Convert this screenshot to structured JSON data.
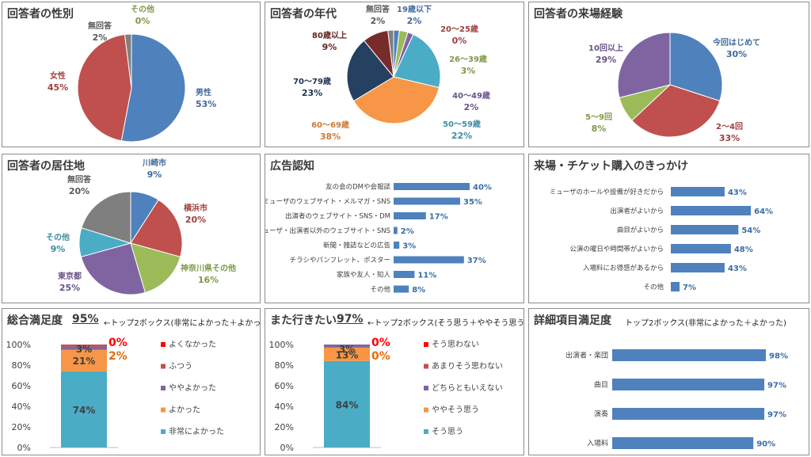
{
  "colors": {
    "blue": "#4f81bd",
    "red": "#c0504d",
    "green": "#9bbb59",
    "purple": "#8064a2",
    "aqua": "#4bacc6",
    "orange": "#f79646",
    "darkred": "#772c2a",
    "navy": "#1f3864",
    "gray": "#7f7f7f",
    "bright_red": "#ff0000",
    "teal": "#4bacc6"
  },
  "panels": {
    "gender": {
      "title": "回答者の性別"
    },
    "age": {
      "title": "回答者の年代"
    },
    "visits": {
      "title": "回答者の来場経験"
    },
    "residence": {
      "title": "回答者の居住地"
    },
    "awareness": {
      "title": "広告認知"
    },
    "trigger": {
      "title": "来場・チケット購入のきっかけ"
    },
    "overall": {
      "title": "総合満足度",
      "top2": "95%",
      "note": "←トップ2ボックス(非常によかった＋よかった)"
    },
    "revisit": {
      "title": "また行きたい",
      "top2": "97%",
      "note": "←トップ2ボックス(そう思う＋ややそう思う)"
    },
    "detail": {
      "title": "詳細項目満足度",
      "note": "トップ2ボックス(非常によかった＋よかった)"
    }
  },
  "chart_data": [
    {
      "id": "gender",
      "type": "pie",
      "slices": [
        {
          "label": "男性",
          "value": 53,
          "display": "53%",
          "color": "#4f81bd"
        },
        {
          "label": "女性",
          "value": 45,
          "display": "45%",
          "color": "#c0504d"
        },
        {
          "label": "無回答",
          "value": 2,
          "display": "2%",
          "color": "#7f7f7f"
        },
        {
          "label": "その他",
          "value": 0,
          "display": "0%",
          "color": "#9bbb59"
        }
      ]
    },
    {
      "id": "age",
      "type": "pie",
      "slices": [
        {
          "label": "19歳以下",
          "value": 2,
          "display": "2%",
          "color": "#4f81bd"
        },
        {
          "label": "20～25歳",
          "value": 0,
          "display": "0%",
          "color": "#c0504d"
        },
        {
          "label": "26～39歳",
          "value": 3,
          "display": "3%",
          "color": "#9bbb59"
        },
        {
          "label": "40～49歳",
          "value": 2,
          "display": "2%",
          "color": "#8064a2"
        },
        {
          "label": "50～59歳",
          "value": 22,
          "display": "22%",
          "color": "#4bacc6"
        },
        {
          "label": "60～69歳",
          "value": 38,
          "display": "38%",
          "color": "#f79646"
        },
        {
          "label": "70～79歳",
          "value": 23,
          "display": "23%",
          "color": "#254061"
        },
        {
          "label": "80歳以上",
          "value": 9,
          "display": "9%",
          "color": "#772c2a"
        },
        {
          "label": "無回答",
          "value": 2,
          "display": "2%",
          "color": "#7f7f7f"
        }
      ]
    },
    {
      "id": "visits",
      "type": "pie",
      "slices": [
        {
          "label": "今回はじめて",
          "value": 30,
          "display": "30%",
          "color": "#4f81bd"
        },
        {
          "label": "2～4回",
          "value": 33,
          "display": "33%",
          "color": "#c0504d"
        },
        {
          "label": "5～9回",
          "value": 8,
          "display": "8%",
          "color": "#9bbb59"
        },
        {
          "label": "10回以上",
          "value": 29,
          "display": "29%",
          "color": "#8064a2"
        }
      ]
    },
    {
      "id": "residence",
      "type": "pie",
      "slices": [
        {
          "label": "川崎市",
          "value": 9,
          "display": "9%",
          "color": "#4f81bd"
        },
        {
          "label": "横浜市",
          "value": 20,
          "display": "20%",
          "color": "#c0504d"
        },
        {
          "label": "神奈川県その他",
          "value": 16,
          "display": "16%",
          "color": "#9bbb59"
        },
        {
          "label": "東京都",
          "value": 25,
          "display": "25%",
          "color": "#8064a2"
        },
        {
          "label": "その他",
          "value": 9,
          "display": "9%",
          "color": "#4bacc6"
        },
        {
          "label": "無回答",
          "value": 20,
          "display": "20%",
          "color": "#7f7f7f"
        }
      ]
    },
    {
      "id": "awareness",
      "type": "bar",
      "orientation": "horizontal",
      "categories": [
        "友の会のDMや会報誌",
        "ミューザのウェブサイト・メルマガ・SNS",
        "出演者のウェブサイト・SNS・DM",
        "ミューザ・出演者以外のウェブサイト・SNS",
        "新聞・雑誌などの広告",
        "チラシやパンフレット、ポスター",
        "家族や友人・知人",
        "その他"
      ],
      "values": [
        40,
        35,
        17,
        2,
        3,
        37,
        11,
        8
      ],
      "labels": [
        "40%",
        "35%",
        "17%",
        "2%",
        "3%",
        "37%",
        "11%",
        "8%"
      ]
    },
    {
      "id": "trigger",
      "type": "bar",
      "orientation": "horizontal",
      "categories": [
        "ミューザのホールや設備が好きだから",
        "出演者がよいから",
        "曲目がよいから",
        "公演の曜日や時間帯がよいから",
        "入場料にお得感があるから",
        "その他"
      ],
      "values": [
        43,
        64,
        54,
        48,
        43,
        7
      ],
      "labels": [
        "43%",
        "64%",
        "54%",
        "48%",
        "43%",
        "7%"
      ]
    },
    {
      "id": "overall",
      "type": "bar",
      "stacked": true,
      "yticks": [
        "100%",
        "80%",
        "60%",
        "40%",
        "20%",
        "0%"
      ],
      "series": [
        {
          "name": "非常によかった",
          "value": 74,
          "display": "74%",
          "color": "#4bacc6"
        },
        {
          "name": "よかった",
          "value": 21,
          "display": "21%",
          "color": "#f79646"
        },
        {
          "name": "ややよかった",
          "value": 3,
          "display": "3%",
          "color": "#8064a2"
        },
        {
          "name": "ふつう",
          "value": 2,
          "display": "2%",
          "color": "#c0504d"
        },
        {
          "name": "よくなかった",
          "value": 0,
          "display": "0%",
          "color": "#ff0000"
        }
      ]
    },
    {
      "id": "revisit",
      "type": "bar",
      "stacked": true,
      "yticks": [
        "100%",
        "80%",
        "60%",
        "40%",
        "20%",
        "0%"
      ],
      "series": [
        {
          "name": "そう思う",
          "value": 84,
          "display": "84%",
          "color": "#4bacc6"
        },
        {
          "name": "ややそう思う",
          "value": 13,
          "display": "13%",
          "color": "#f79646"
        },
        {
          "name": "どちらともいえない",
          "value": 3,
          "display": "3%",
          "color": "#8064a2"
        },
        {
          "name": "あまりそう思わない",
          "value": 0,
          "display": "0%",
          "color": "#c0504d"
        },
        {
          "name": "そう思わない",
          "value": 0,
          "display": "0%",
          "color": "#ff0000"
        }
      ]
    },
    {
      "id": "detail",
      "type": "bar",
      "orientation": "horizontal",
      "categories": [
        "出演者・楽団",
        "曲目",
        "演奏",
        "入場料"
      ],
      "values": [
        98,
        97,
        97,
        90
      ],
      "labels": [
        "98%",
        "97%",
        "97%",
        "90%"
      ]
    }
  ]
}
